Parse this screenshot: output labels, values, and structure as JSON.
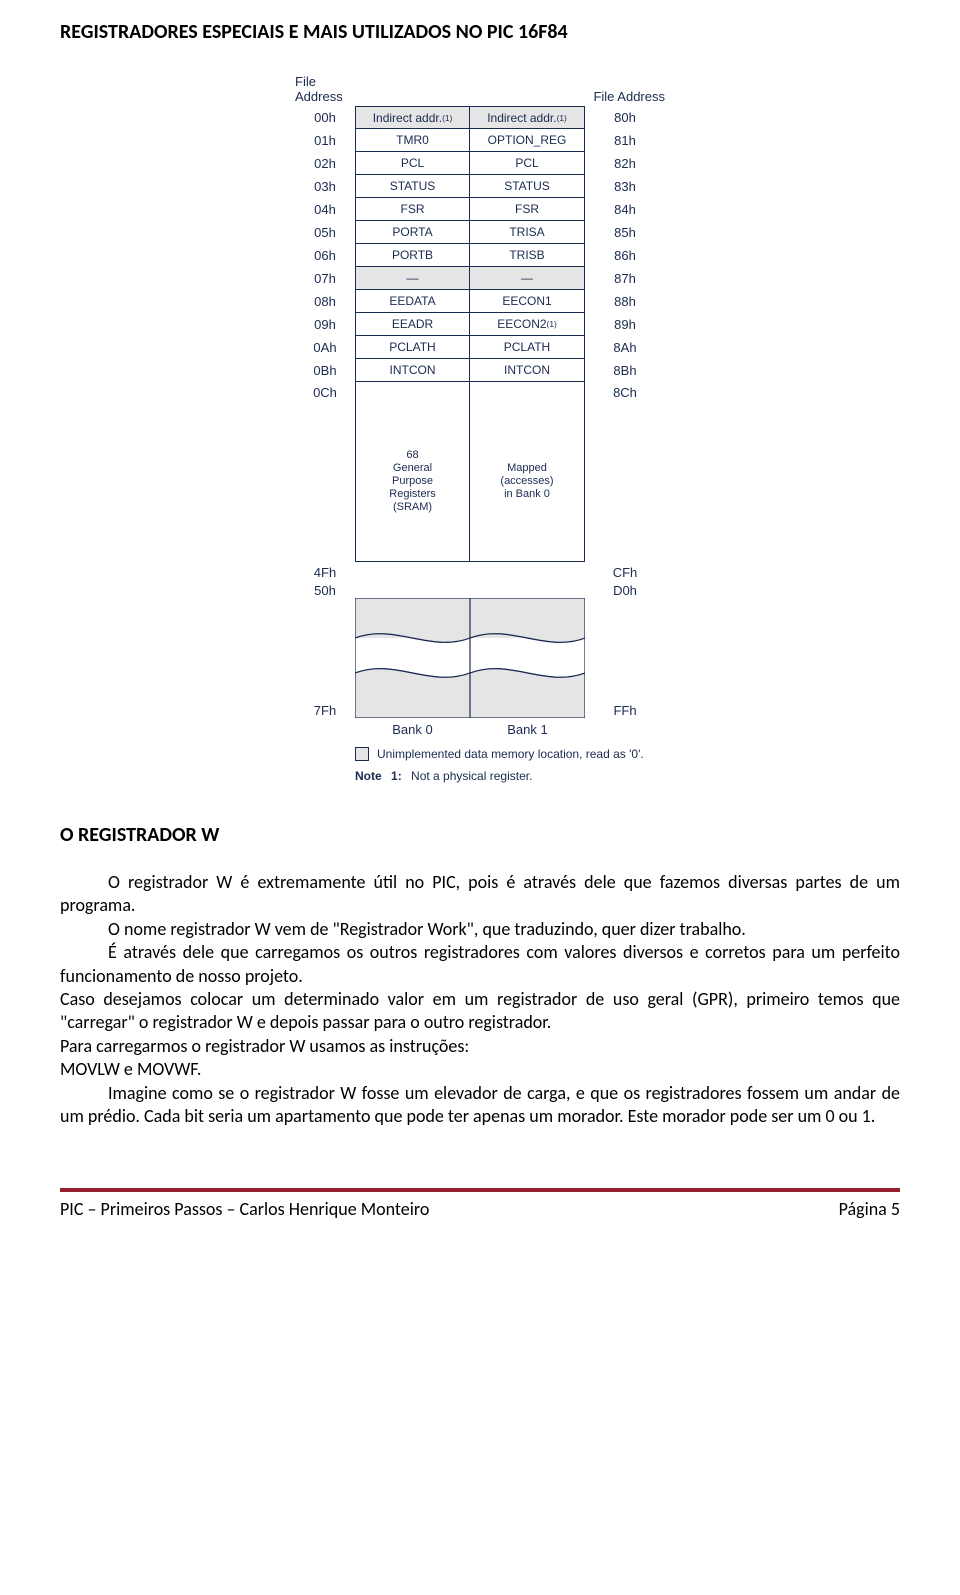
{
  "colors": {
    "text": "#000000",
    "diagram_text": "#1a2a50",
    "diagram_border": "#1a2a50",
    "shaded_cell": "#e5e5e5",
    "footer_rule": "#991f2e",
    "background": "#ffffff"
  },
  "headings": {
    "h1": "REGISTRADORES ESPECIAIS E MAIS UTILIZADOS NO PIC 16F84",
    "h2": "O REGISTRADOR W"
  },
  "diagram": {
    "file_address_label": "File Address",
    "rows": [
      {
        "l": "00h",
        "b0": "Indirect addr.(1)",
        "b1": "Indirect addr.(1)",
        "r": "80h",
        "shaded": true,
        "sup": true
      },
      {
        "l": "01h",
        "b0": "TMR0",
        "b1": "OPTION_REG",
        "r": "81h"
      },
      {
        "l": "02h",
        "b0": "PCL",
        "b1": "PCL",
        "r": "82h"
      },
      {
        "l": "03h",
        "b0": "STATUS",
        "b1": "STATUS",
        "r": "83h"
      },
      {
        "l": "04h",
        "b0": "FSR",
        "b1": "FSR",
        "r": "84h"
      },
      {
        "l": "05h",
        "b0": "PORTA",
        "b1": "TRISA",
        "r": "85h"
      },
      {
        "l": "06h",
        "b0": "PORTB",
        "b1": "TRISB",
        "r": "86h"
      },
      {
        "l": "07h",
        "b0": "—",
        "b1": "—",
        "r": "87h",
        "shaded": true
      },
      {
        "l": "08h",
        "b0": "EEDATA",
        "b1": "EECON1",
        "r": "88h"
      },
      {
        "l": "09h",
        "b0": "EEADR",
        "b1": "EECON2(1)",
        "r": "89h",
        "sup_b1": true
      },
      {
        "l": "0Ah",
        "b0": "PCLATH",
        "b1": "PCLATH",
        "r": "8Ah"
      },
      {
        "l": "0Bh",
        "b0": "INTCON",
        "b1": "INTCON",
        "r": "8Bh"
      }
    ],
    "after_addr_l": "0Ch",
    "after_addr_r": "8Ch",
    "gpr_left": "68\nGeneral\nPurpose\nRegisters\n(SRAM)",
    "gpr_right": "Mapped\n(accesses)\nin Bank 0",
    "gpr_end_l": "4Fh",
    "gpr_end_r": "CFh",
    "post_gpr_l": "50h",
    "post_gpr_r": "D0h",
    "end_l": "7Fh",
    "end_r": "FFh",
    "bank0": "Bank 0",
    "bank1": "Bank 1",
    "legend": "Unimplemented data memory location, read as '0'.",
    "note_label": "Note",
    "note_num": "1:",
    "note_text": "Not a physical register."
  },
  "body": {
    "p1": "O registrador W é extremamente útil no PIC, pois é através dele que fazemos diversas partes de um programa.",
    "p2": "O nome registrador W vem de \"Registrador Work\", que traduzindo, quer dizer trabalho.",
    "p3": "É através dele que carregamos os outros registradores com valores diversos e corretos para um perfeito funcionamento de nosso projeto.",
    "p4": "Caso desejamos colocar um determinado valor em um registrador de uso geral (GPR), primeiro temos que \"carregar\" o registrador W e depois passar para o outro registrador.",
    "p5": "Para carregarmos o registrador W usamos as instruções:",
    "p6": "MOVLW e MOVWF.",
    "p7": "Imagine como se o registrador W fosse um elevador de carga, e que os registradores fossem um andar de um prédio. Cada bit seria um apartamento que pode ter apenas um morador. Este morador pode ser um 0 ou 1."
  },
  "footer": {
    "left": "PIC – Primeiros Passos – Carlos Henrique Monteiro",
    "right": "Página 5"
  }
}
